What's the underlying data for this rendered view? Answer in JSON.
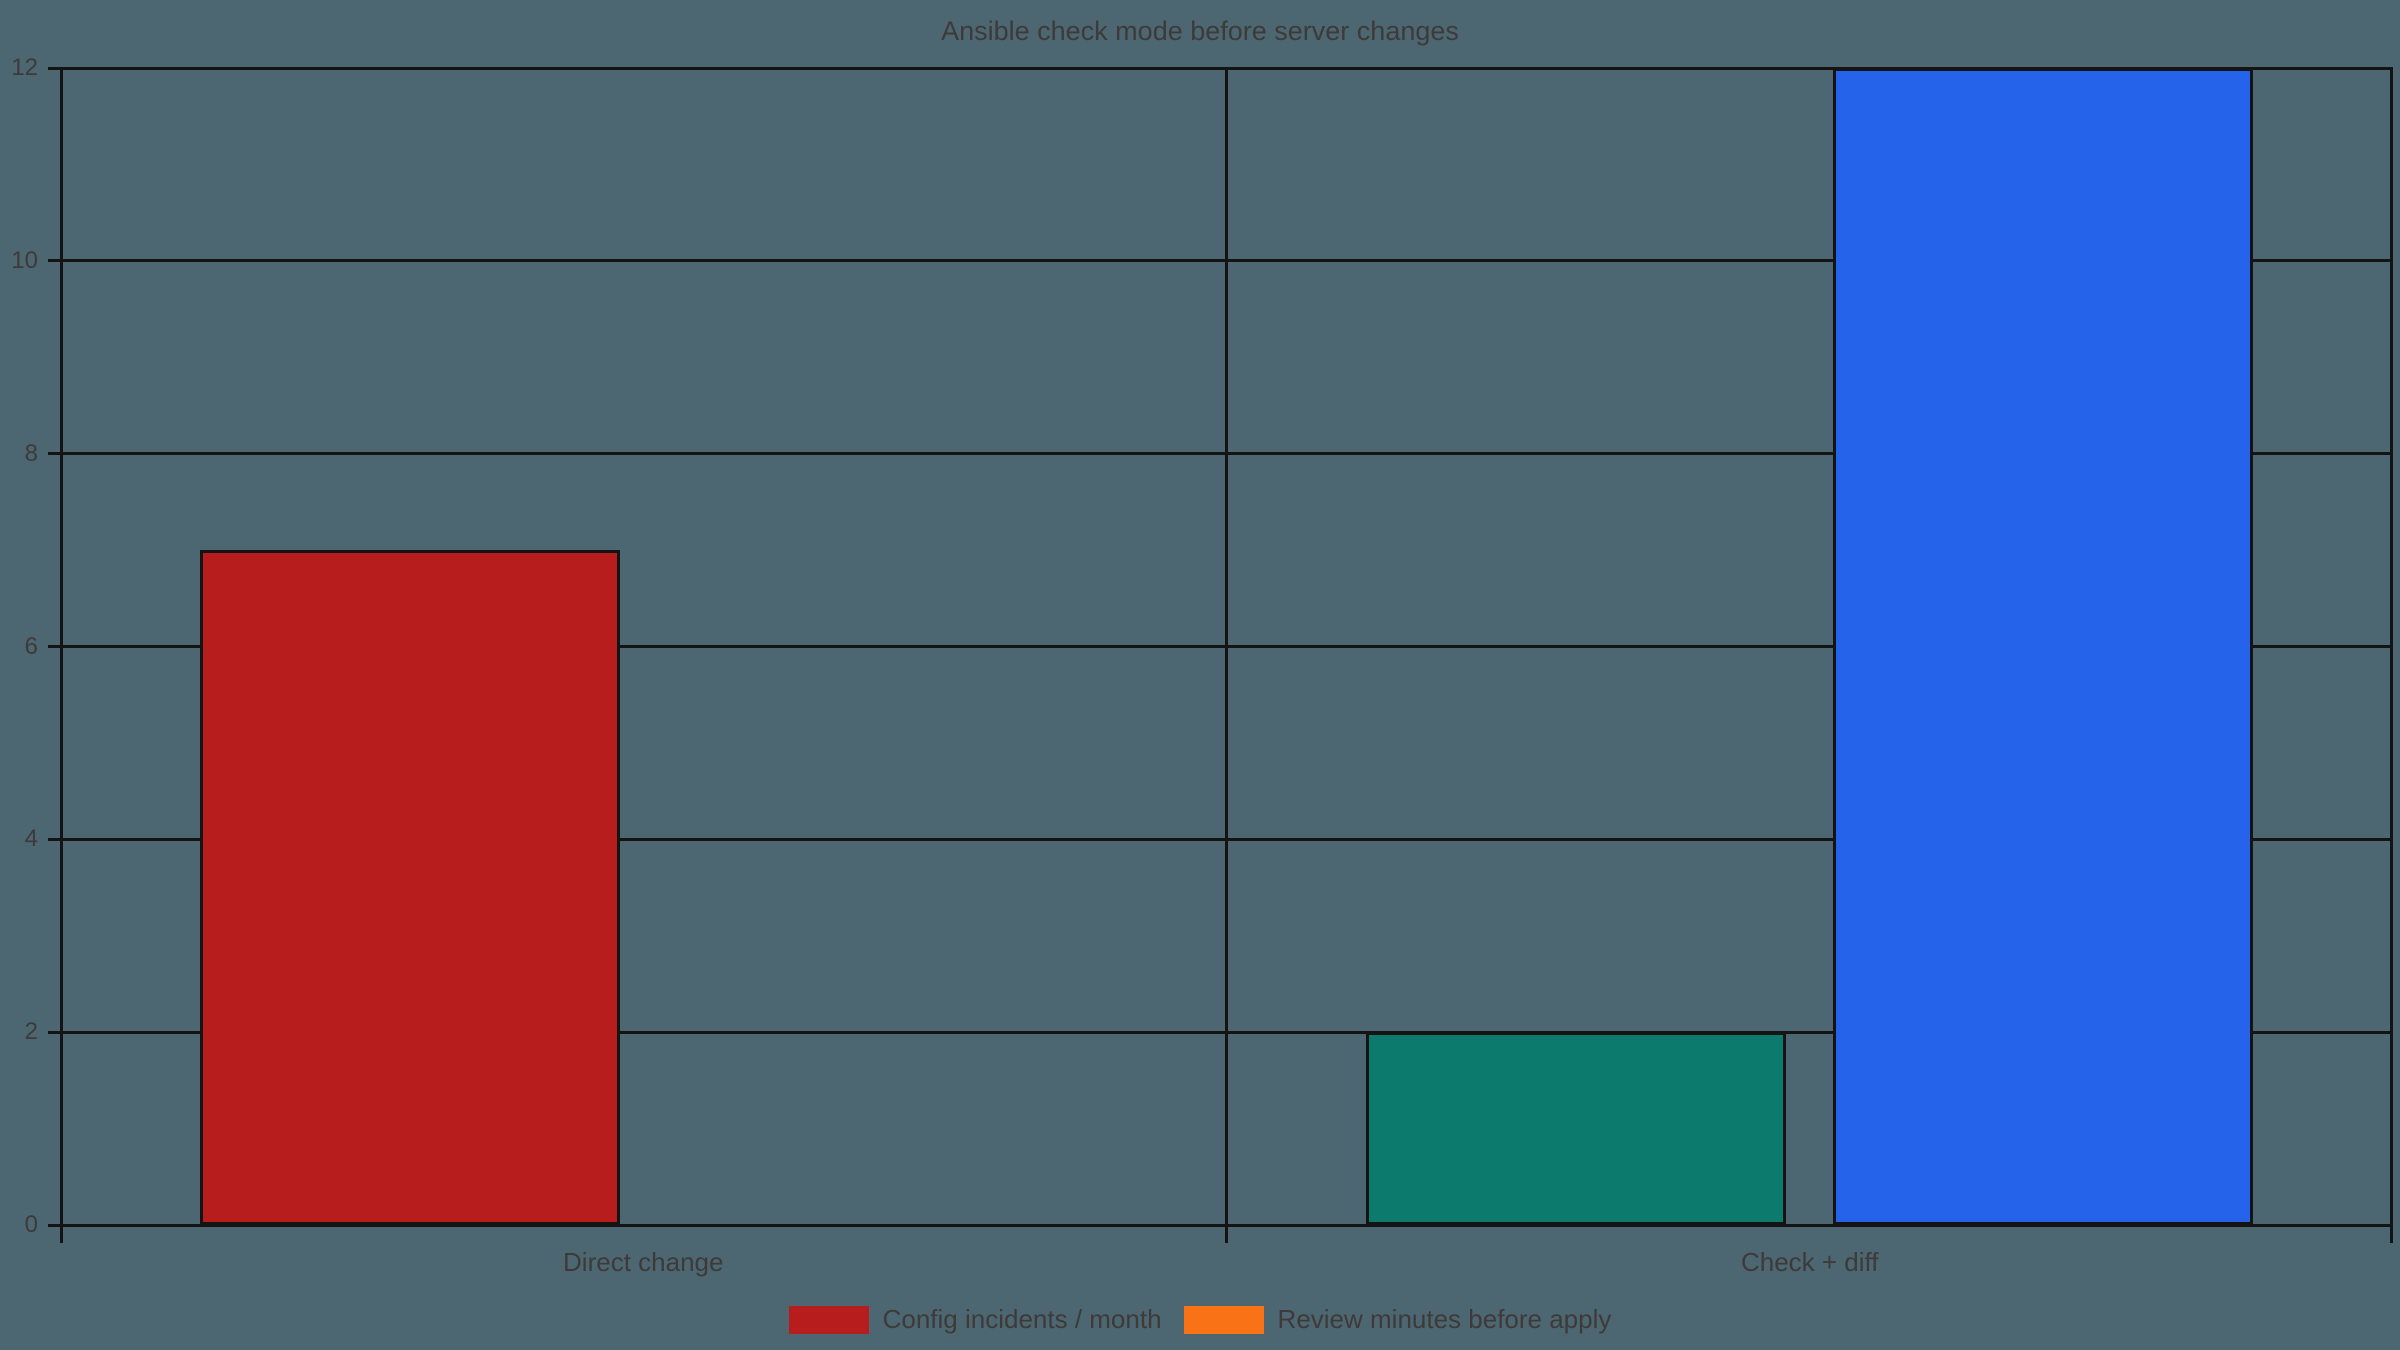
{
  "title": "Ansible check mode before server changes",
  "colors": {
    "background": "#4C6771",
    "axis": "#141414",
    "text": "#3E3A39",
    "red": "#B71D1D",
    "teal": "#0D7A6E",
    "blue": "#2563EB",
    "orange": "#F97316"
  },
  "chart_data": {
    "type": "bar",
    "title": "Ansible check mode before server changes",
    "categories": [
      "Direct change",
      "Check + diff"
    ],
    "bars": [
      {
        "category": "Direct change",
        "category_index": 0,
        "offset": -0.2,
        "bar_width": 0.36,
        "value": 7,
        "color": "#B71D1D"
      },
      {
        "category": "Check + diff",
        "category_index": 1,
        "offset": -0.2,
        "bar_width": 0.36,
        "value": 2,
        "color": "#0D7A6E"
      },
      {
        "category": "Check + diff",
        "category_index": 1,
        "offset": 0.2,
        "bar_width": 0.36,
        "value": 12,
        "color": "#2563EB"
      }
    ],
    "xlabel": "",
    "ylabel": "",
    "ylim": [
      0,
      12
    ],
    "yticks": [
      0,
      2,
      4,
      6,
      8,
      10,
      12
    ],
    "x_boundaries": [
      -0.5,
      0.5,
      1.5
    ],
    "grid": "horizontal gridlines at every ytick; vertical gridlines at category boundaries",
    "legend": {
      "position": "bottom-center",
      "entries": [
        {
          "label": "Config incidents / month",
          "color": "#B71D1D"
        },
        {
          "label": "Review minutes before apply",
          "color": "#F97316"
        }
      ]
    }
  }
}
